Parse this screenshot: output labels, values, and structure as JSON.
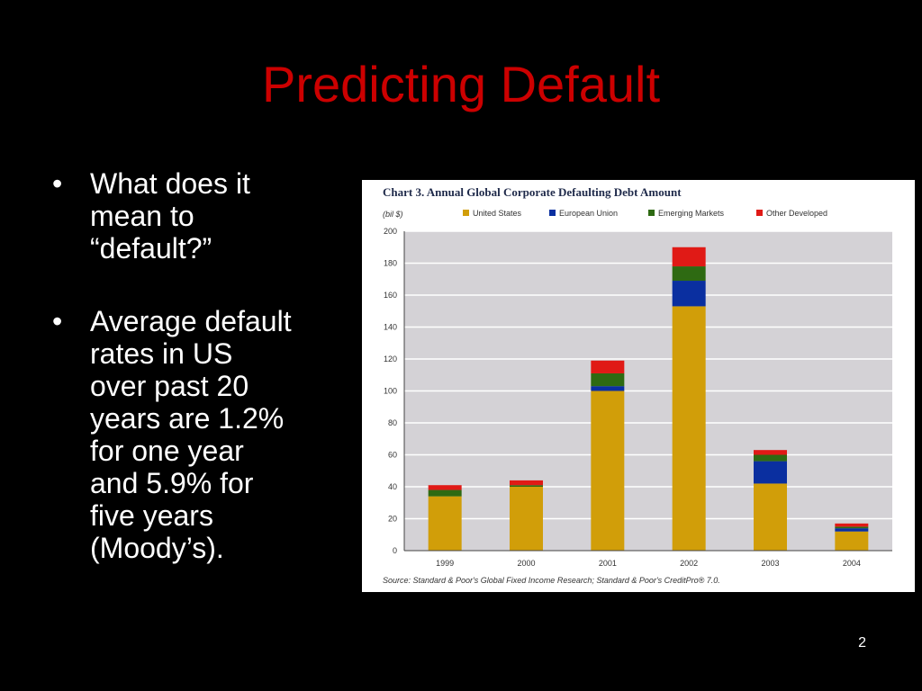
{
  "slide": {
    "title": "Predicting Default",
    "bullets": [
      "What does it\nmean to\n“default?”",
      "Average default\nrates in US\nover past 20\nyears are 1.2%\nfor one year\nand 5.9% for\nfive years\n(Moody’s)."
    ],
    "bullet_symbol": "•",
    "page_number": "2"
  },
  "colors": {
    "background": "#000000",
    "title": "#cc0000",
    "text": "#ffffff",
    "plot_bg": "#d4d2d6",
    "gridline": "#ffffff"
  },
  "chart_data": {
    "type": "bar",
    "stacked": true,
    "title": "Chart 3. Annual Global Corporate Defaulting Debt Amount",
    "unit_label": "(bil $)",
    "categories": [
      "1999",
      "2000",
      "2001",
      "2002",
      "2003",
      "2004"
    ],
    "series": [
      {
        "name": "United States",
        "color": "#d19e09",
        "values": [
          34,
          40,
          100,
          153,
          42,
          12
        ]
      },
      {
        "name": "European Union",
        "color": "#0a2fa0",
        "values": [
          0,
          0,
          3,
          16,
          14,
          2
        ]
      },
      {
        "name": "Emerging Markets",
        "color": "#2e6a12",
        "values": [
          4,
          1,
          8,
          9,
          4,
          1
        ]
      },
      {
        "name": "Other Developed",
        "color": "#e01a16",
        "values": [
          3,
          3,
          8,
          12,
          3,
          2
        ]
      }
    ],
    "ylim": [
      0,
      200
    ],
    "yticks": [
      "0",
      "20",
      "40",
      "60",
      "80",
      "100",
      "120",
      "140",
      "160",
      "180",
      "200"
    ],
    "grid": true,
    "legend_position": "top",
    "source": "Source: Standard & Poor's Global Fixed Income Research; Standard & Poor's CreditPro® 7.0."
  }
}
